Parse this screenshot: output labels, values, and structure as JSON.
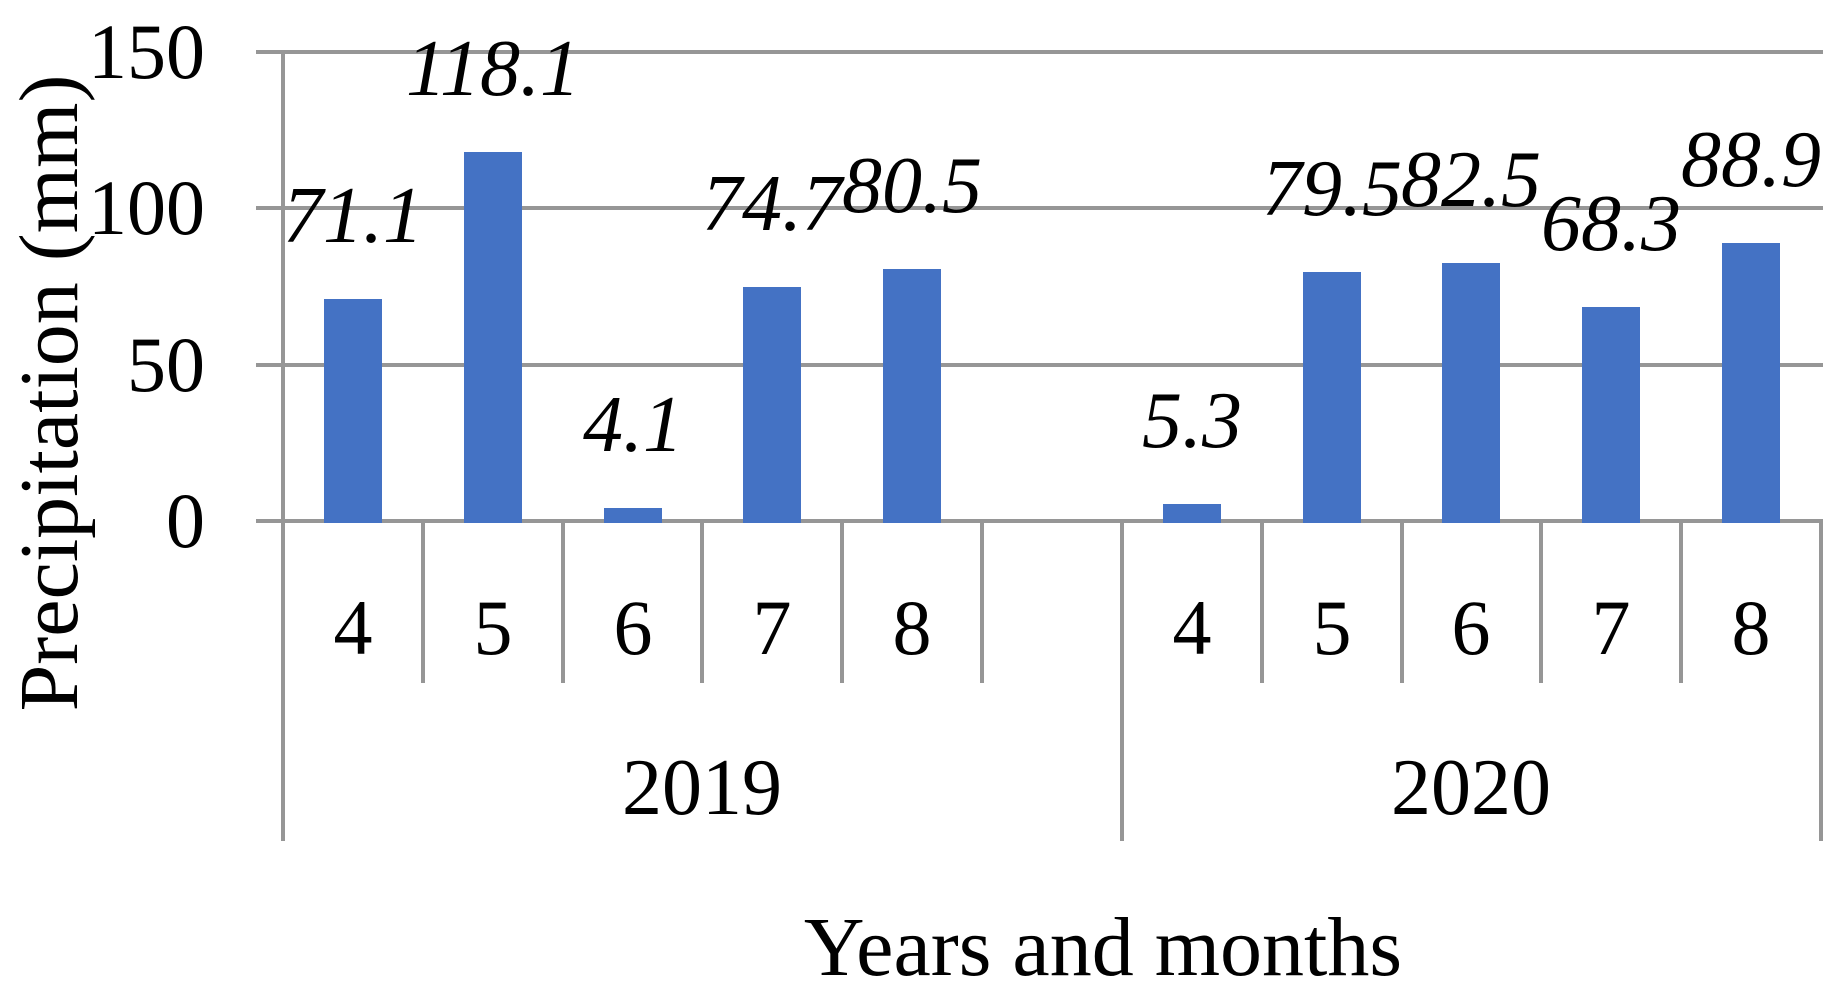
{
  "chart_data": {
    "type": "bar",
    "title": "",
    "ylabel": "Precipitation (mm)",
    "xlabel": "Years and months",
    "ylim": [
      0,
      150
    ],
    "yticks": [
      0,
      50,
      100,
      150
    ],
    "ytick_labels": [
      "0",
      "50",
      "100",
      "150"
    ],
    "bar_color": "#4472C4",
    "line_color": "#969696",
    "text_color": "#000000",
    "legend_position": "none",
    "gridlines": "horizontal",
    "groups": [
      {
        "year": "2019",
        "categories": [
          "4",
          "5",
          "6",
          "7",
          "8"
        ],
        "values": [
          71.1,
          118.1,
          4.1,
          74.7,
          80.5
        ]
      },
      {
        "year": "2020",
        "categories": [
          "4",
          "5",
          "6",
          "7",
          "8"
        ],
        "values": [
          5.3,
          79.5,
          82.5,
          68.3,
          88.9
        ]
      }
    ]
  }
}
